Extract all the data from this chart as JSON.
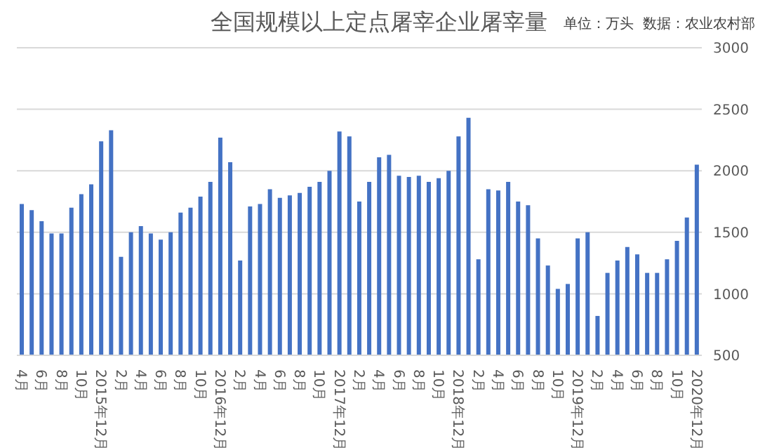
{
  "chart_data": {
    "type": "bar",
    "title": "全国规模以上定点屠宰企业屠宰量",
    "annotations": [
      "单位：万头  数据：农业农村部"
    ],
    "categories": [
      "4月",
      null,
      "6月",
      null,
      "8月",
      null,
      "10月",
      null,
      "2015年12月",
      null,
      "2月",
      null,
      "4月",
      null,
      "6月",
      null,
      "8月",
      null,
      "10月",
      null,
      "2016年12月",
      null,
      "2月",
      null,
      "4月",
      null,
      "6月",
      null,
      "8月",
      null,
      "10月",
      null,
      "2017年12月",
      null,
      "2月",
      null,
      "4月",
      null,
      "6月",
      null,
      "8月",
      null,
      "10月",
      null,
      "2018年12月",
      null,
      "2月",
      null,
      "4月",
      null,
      "6月",
      null,
      "8月",
      null,
      "10月",
      null,
      "2019年12月",
      null,
      "2月",
      null,
      "4月",
      null,
      "6月",
      null,
      "8月",
      null,
      "10月",
      null,
      "2020年12月"
    ],
    "series": [
      {
        "color": "#4472c4",
        "values": [
          1730,
          1680,
          1590,
          1490,
          1490,
          1700,
          1810,
          1890,
          2240,
          2330,
          1300,
          1500,
          1550,
          1490,
          1440,
          1500,
          1660,
          1700,
          1790,
          1910,
          2270,
          2070,
          1270,
          1710,
          1730,
          1850,
          1780,
          1800,
          1820,
          1870,
          1910,
          2000,
          2320,
          2280,
          1750,
          1910,
          2110,
          2130,
          1960,
          1950,
          1960,
          1910,
          1940,
          2000,
          2280,
          2430,
          1280,
          1850,
          1840,
          1910,
          1750,
          1720,
          1450,
          1230,
          1040,
          1080,
          1450,
          1500,
          820,
          1170,
          1270,
          1380,
          1320,
          1170,
          1170,
          1280,
          1430,
          1620,
          2050
        ]
      }
    ],
    "ylim": [
      500,
      3000
    ],
    "yticks": [
      500,
      1000,
      1500,
      2000,
      2500,
      3000
    ],
    "grid": "y",
    "legend": false
  }
}
